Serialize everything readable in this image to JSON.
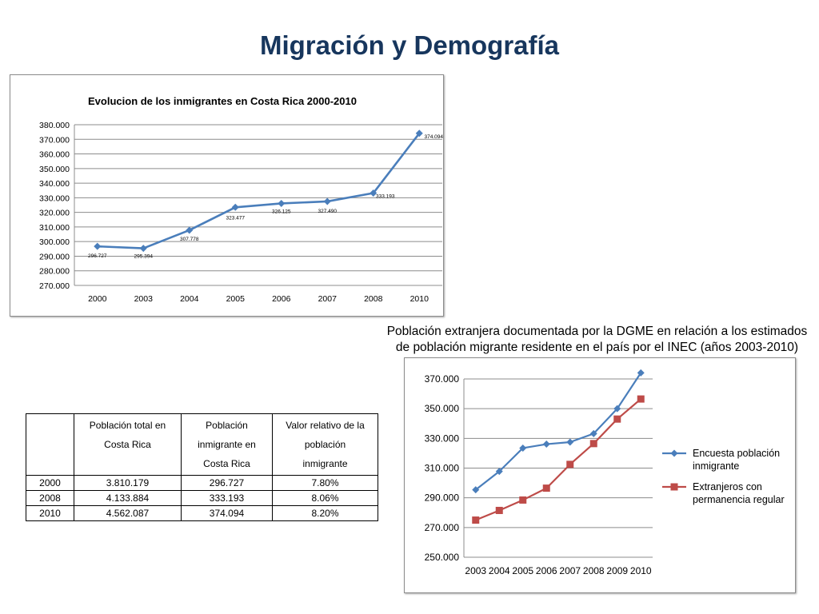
{
  "slide": {
    "title": "Migración y Demografía"
  },
  "chart_data": [
    {
      "type": "line",
      "title": "Evolucion de los inmigrantes en Costa Rica 2000-2010",
      "categories": [
        "2000",
        "2003",
        "2004",
        "2005",
        "2006",
        "2007",
        "2008",
        "2010"
      ],
      "series": [
        {
          "values": [
            296727,
            295394,
            307778,
            323477,
            326125,
            327490,
            333193,
            374094
          ],
          "labels": [
            "296.727",
            "295.394",
            "307.778",
            "323.477",
            "326.125",
            "327.490",
            "333.193",
            "374.094"
          ],
          "color": "#4a7ebb"
        }
      ],
      "ylim": [
        270000,
        380000
      ],
      "yticks": [
        "270.000",
        "280.000",
        "290.000",
        "300.000",
        "310.000",
        "320.000",
        "330.000",
        "340.000",
        "350.000",
        "360.000",
        "370.000",
        "380.000"
      ],
      "grid": true,
      "legend": "none"
    },
    {
      "type": "line",
      "title": [
        "Población extranjera documentada por la DGME en relación a los estimados",
        "de población migrante residente en el país por el INEC (años 2003-2010)"
      ],
      "categories": [
        "2003",
        "2004",
        "2005",
        "2006",
        "2007",
        "2008",
        "2009",
        "2010"
      ],
      "series": [
        {
          "name": [
            "Encuesta población",
            "inmigrante"
          ],
          "values": [
            295394,
            307778,
            323477,
            326125,
            327490,
            333193,
            350000,
            374094
          ],
          "color": "#4a7ebb",
          "marker": "diamond"
        },
        {
          "name": [
            "Extranjeros con",
            "permanencia regular"
          ],
          "values": [
            275000,
            281500,
            288500,
            296500,
            312500,
            326500,
            343000,
            356500
          ],
          "color": "#be4b48",
          "marker": "square"
        }
      ],
      "ylim": [
        250000,
        370000
      ],
      "yticks": [
        "250.000",
        "270.000",
        "290.000",
        "310.000",
        "330.000",
        "350.000",
        "370.000"
      ],
      "grid": true,
      "legend": "right"
    }
  ],
  "table": {
    "headers": [
      [],
      [
        "Población total en",
        "Costa Rica"
      ],
      [
        "Población",
        "inmigrante en",
        "Costa Rica"
      ],
      [
        "Valor relativo de la",
        "población",
        "inmigrante"
      ]
    ],
    "rows": [
      [
        "2000",
        "3.810.179",
        "296.727",
        "7.80%"
      ],
      [
        "2008",
        "4.133.884",
        "333.193",
        "8.06%"
      ],
      [
        "2010",
        "4.562.087",
        "374.094",
        "8.20%"
      ]
    ]
  }
}
